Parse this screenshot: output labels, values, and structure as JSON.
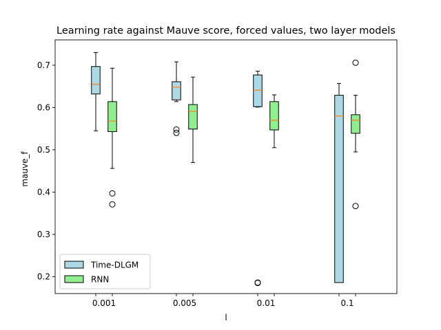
{
  "chart_data": {
    "type": "boxplot",
    "title": "Learning rate against Mauve score, forced values, two layer models",
    "xlabel": "l",
    "ylabel": "mauve_f",
    "categories": [
      "0.001",
      "0.005",
      "0.01",
      "0.1"
    ],
    "ylim": [
      0.16,
      0.76
    ],
    "yticks": [
      0.2,
      0.3,
      0.4,
      0.5,
      0.6,
      0.7
    ],
    "ytick_labels": [
      "0.2",
      "0.3",
      "0.4",
      "0.5",
      "0.6",
      "0.7"
    ],
    "grid": false,
    "legend_position": "lower-left",
    "median_color": "#ff7f0e",
    "series": [
      {
        "name": "Time-DLGM",
        "color": "#add8e6",
        "boxes": [
          {
            "whislo": 0.545,
            "q1": 0.632,
            "med": 0.655,
            "q3": 0.697,
            "whishi": 0.73,
            "fliers": []
          },
          {
            "whislo": 0.614,
            "q1": 0.618,
            "med": 0.648,
            "q3": 0.661,
            "whishi": 0.708,
            "fliers": [
              0.548,
              0.54
            ]
          },
          {
            "whislo": 0.601,
            "q1": 0.602,
            "med": 0.641,
            "q3": 0.677,
            "whishi": 0.686,
            "fliers": [
              0.185,
              0.186
            ]
          },
          {
            "whislo": 0.186,
            "q1": 0.186,
            "med": 0.58,
            "q3": 0.629,
            "whishi": 0.657,
            "fliers": []
          }
        ]
      },
      {
        "name": "RNN",
        "color": "#90ee90",
        "boxes": [
          {
            "whislo": 0.456,
            "q1": 0.543,
            "med": 0.568,
            "q3": 0.614,
            "whishi": 0.693,
            "fliers": [
              0.397,
              0.371
            ]
          },
          {
            "whislo": 0.47,
            "q1": 0.549,
            "med": 0.591,
            "q3": 0.607,
            "whishi": 0.672,
            "fliers": []
          },
          {
            "whislo": 0.505,
            "q1": 0.547,
            "med": 0.57,
            "q3": 0.614,
            "whishi": 0.63,
            "fliers": []
          },
          {
            "whislo": 0.495,
            "q1": 0.539,
            "med": 0.57,
            "q3": 0.583,
            "whishi": 0.629,
            "fliers": [
              0.706,
              0.367
            ]
          }
        ]
      }
    ]
  }
}
